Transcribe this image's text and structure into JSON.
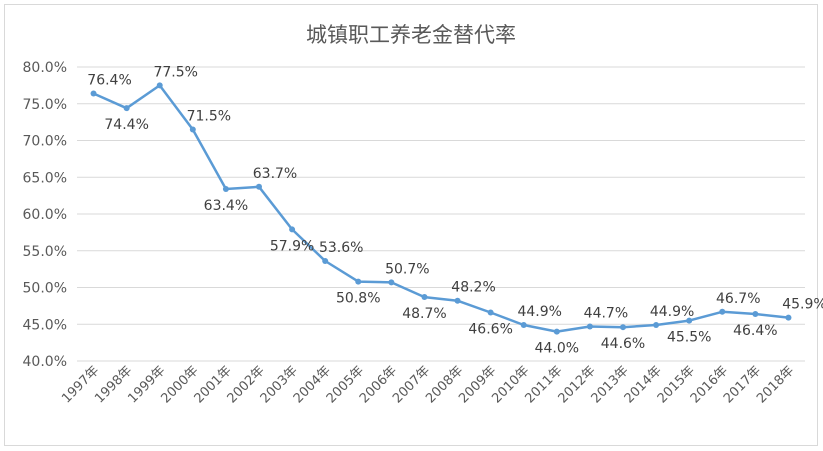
{
  "chart_data": {
    "type": "line",
    "title": "城镇职工养老金替代率",
    "xlabel": "",
    "ylabel": "",
    "ylim": [
      40.0,
      80.0
    ],
    "yticks": [
      "40.0%",
      "45.0%",
      "50.0%",
      "55.0%",
      "60.0%",
      "65.0%",
      "70.0%",
      "75.0%",
      "80.0%"
    ],
    "grid": true,
    "legend": "none",
    "categories": [
      "1997年",
      "1998年",
      "1999年",
      "2000年",
      "2001年",
      "2002年",
      "2003年",
      "2004年",
      "2005年",
      "2006年",
      "2007年",
      "2008年",
      "2009年",
      "2010年",
      "2011年",
      "2012年",
      "2013年",
      "2014年",
      "2015年",
      "2016年",
      "2017年",
      "2018年"
    ],
    "values": [
      76.4,
      74.4,
      77.5,
      71.5,
      63.4,
      63.7,
      57.9,
      53.6,
      50.8,
      50.7,
      48.7,
      48.2,
      46.6,
      44.9,
      44.0,
      44.7,
      44.6,
      44.9,
      45.5,
      46.7,
      46.4,
      45.9
    ],
    "data_labels": [
      "76.4%",
      "74.4%",
      "77.5%",
      "71.5%",
      "63.4%",
      "63.7%",
      "57.9%",
      "53.6%",
      "50.8%",
      "50.7%",
      "48.7%",
      "48.2%",
      "46.6%",
      "44.9%",
      "44.0%",
      "44.7%",
      "44.6%",
      "44.9%",
      "45.5%",
      "46.7%",
      "46.4%",
      "45.9%"
    ],
    "label_position": [
      "above",
      "below",
      "above",
      "above",
      "below",
      "above",
      "below",
      "above",
      "below",
      "above",
      "below",
      "above",
      "below",
      "above",
      "below",
      "above",
      "below",
      "above",
      "below",
      "above",
      "below",
      "above"
    ],
    "line_color": "#5b9bd5"
  }
}
